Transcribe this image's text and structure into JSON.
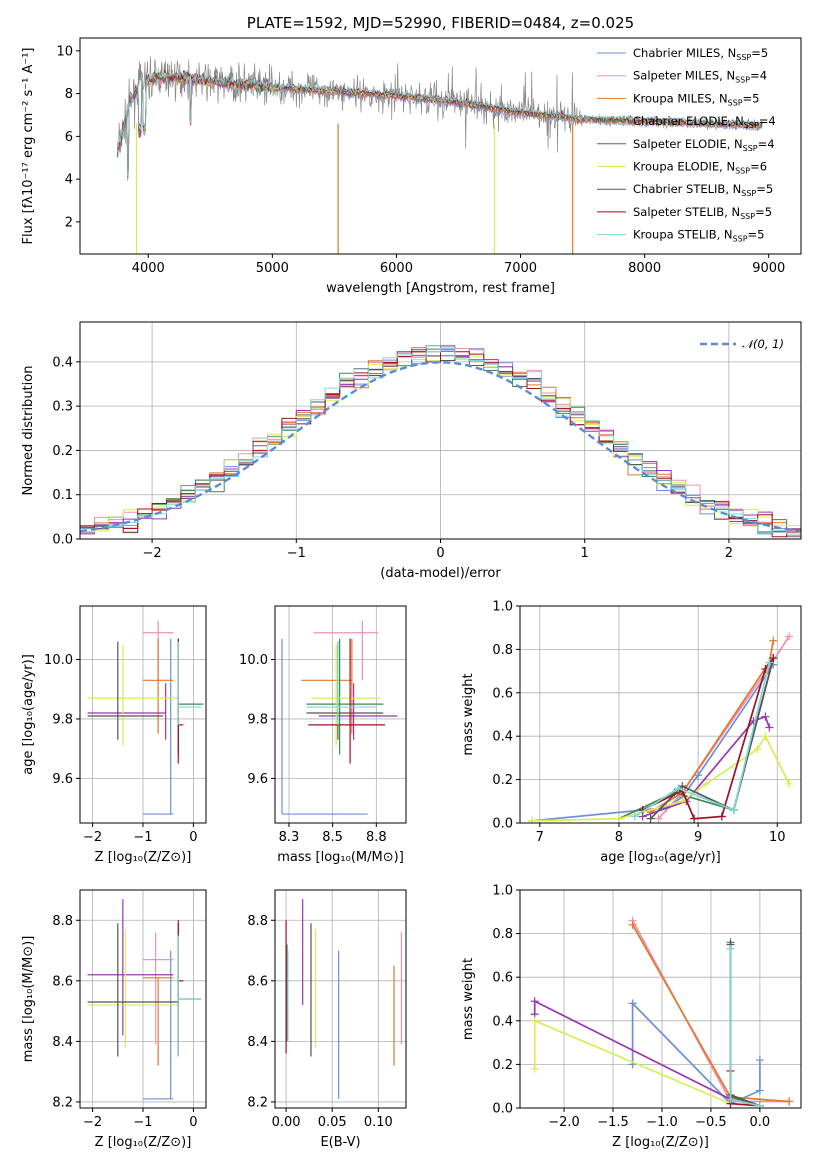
{
  "colors": [
    "#6d8fd8",
    "#f08fb8",
    "#e07a2c",
    "#3a8a4e",
    "#9b35b0",
    "#d9eb55",
    "#555555",
    "#a01020",
    "#7fd6d6"
  ],
  "chart_data": [
    {
      "id": "spectrum",
      "type": "line",
      "title": "PLATE=1592, MJD=52990, FIBERID=0484, z=0.025",
      "xlabel": "wavelength [Angstrom, rest frame]",
      "ylabel": "Flux [fλ10⁻¹⁷ erg cm⁻² s⁻¹ A⁻¹]",
      "xlim": [
        3450,
        9260
      ],
      "ylim": [
        0.5,
        10.6
      ],
      "xticks": [
        4000,
        5000,
        6000,
        7000,
        8000,
        9000
      ],
      "yticks": [
        2,
        4,
        6,
        8,
        10
      ],
      "continuum": [
        [
          3750,
          5.2
        ],
        [
          3850,
          7.6
        ],
        [
          3950,
          8.6
        ],
        [
          4100,
          8.8
        ],
        [
          4300,
          8.7
        ],
        [
          4600,
          8.5
        ],
        [
          5000,
          8.3
        ],
        [
          5500,
          8.1
        ],
        [
          6000,
          7.9
        ],
        [
          6500,
          7.6
        ],
        [
          7000,
          7.1
        ],
        [
          7500,
          6.8
        ],
        [
          8000,
          6.7
        ],
        [
          8500,
          6.6
        ],
        [
          9000,
          6.5
        ]
      ],
      "legend": [
        "Chabrier MILES, N_SSP=5",
        "Salpeter MILES, N_SSP=4",
        "Kroupa MILES, N_SSP=5",
        "Chabrier ELODIE, N_SSP=4",
        "Salpeter ELODIE, N_SSP=4",
        "Kroupa ELODIE, N_SSP=6",
        "Chabrier STELIB, N_SSP=5",
        "Salpeter STELIB, N_SSP=5",
        "Kroupa STELIB, N_SSP=5"
      ],
      "legend_labels": [
        {
          "name": "Chabrier MILES, N",
          "sub": "SSP",
          "tail": "=5"
        },
        {
          "name": "Salpeter MILES, N",
          "sub": "SSP",
          "tail": "=4"
        },
        {
          "name": "Kroupa MILES, N",
          "sub": "SSP",
          "tail": "=5"
        },
        {
          "name": "Chabrier ELODIE, N",
          "sub": "SSP",
          "tail": "=4"
        },
        {
          "name": "Salpeter ELODIE, N",
          "sub": "SSP",
          "tail": "=4"
        },
        {
          "name": "Kroupa ELODIE, N",
          "sub": "SSP",
          "tail": "=6"
        },
        {
          "name": "Chabrier STELIB, N",
          "sub": "SSP",
          "tail": "=5"
        },
        {
          "name": "Salpeter STELIB, N",
          "sub": "SSP",
          "tail": "=5"
        },
        {
          "name": "Kroupa STELIB, N",
          "sub": "SSP",
          "tail": "=5"
        }
      ],
      "legend_position": "top-right"
    },
    {
      "id": "residuals",
      "type": "histogram",
      "xlabel": "(data-model)/error",
      "ylabel": "Normed distribution",
      "xlim": [
        -2.5,
        2.5
      ],
      "ylim": [
        0,
        0.49
      ],
      "xticks": [
        -2,
        -1,
        0,
        1,
        2
      ],
      "yticks": [
        0.0,
        0.1,
        0.2,
        0.3,
        0.4
      ],
      "grid": true,
      "reference": {
        "label": "𝒩(0, 1)",
        "mean": 0,
        "sigma": 1
      },
      "legend_position": "top-right"
    },
    {
      "id": "age_vs_Z",
      "type": "scatter",
      "xlabel": "Z [log₁₀(Z/Z⊙)]",
      "ylabel": "age  [log₁₀(age/yr)]",
      "xlim": [
        -2.25,
        0.25
      ],
      "ylim": [
        9.45,
        10.18
      ],
      "xticks": [
        -2,
        -1,
        0
      ],
      "yticks": [
        9.6,
        9.8,
        10.0
      ],
      "grid": true,
      "points": [
        {
          "x": -0.45,
          "y": 9.48,
          "xlo": -1.0,
          "xhi": -0.4,
          "ylo": 9.48,
          "yhi": 10.07
        },
        {
          "x": -0.7,
          "y": 10.09,
          "xlo": -1.0,
          "xhi": -0.4,
          "ylo": 9.93,
          "yhi": 10.13
        },
        {
          "x": -0.7,
          "y": 9.93,
          "xlo": -1.0,
          "xhi": -0.4,
          "ylo": 9.75,
          "yhi": 10.07
        },
        {
          "x": -0.3,
          "y": 9.85,
          "xlo": -0.3,
          "xhi": 0.2,
          "ylo": 9.68,
          "yhi": 10.07
        },
        {
          "x": -0.55,
          "y": 9.82,
          "xlo": -2.1,
          "xhi": -0.55,
          "ylo": 9.73,
          "yhi": 9.92
        },
        {
          "x": -1.4,
          "y": 9.87,
          "xlo": -2.1,
          "xhi": -0.3,
          "ylo": 9.71,
          "yhi": 10.05
        },
        {
          "x": -1.5,
          "y": 9.81,
          "xlo": -2.1,
          "xhi": -0.6,
          "ylo": 9.73,
          "yhi": 10.06
        },
        {
          "x": -0.3,
          "y": 9.78,
          "xlo": -0.3,
          "xhi": -0.2,
          "ylo": 9.65,
          "yhi": 10.07
        },
        {
          "x": -0.3,
          "y": 9.84,
          "xlo": -0.3,
          "xhi": 0.15,
          "ylo": 9.78,
          "yhi": 10.06
        }
      ]
    },
    {
      "id": "age_vs_mass",
      "type": "scatter",
      "xlabel": "mass [log₁₀(M/M⊙)]",
      "ylabel": "",
      "xlim": [
        8.17,
        8.92
      ],
      "ylim": [
        9.45,
        10.18
      ],
      "xticks": [
        8.25,
        8.5,
        8.75
      ],
      "yticks": [
        9.6,
        9.8,
        10.0
      ],
      "grid": true,
      "points": [
        {
          "x": 8.21,
          "y": 9.48,
          "xlo": 8.21,
          "xhi": 8.7,
          "ylo": 9.48,
          "yhi": 10.07
        },
        {
          "x": 8.67,
          "y": 10.09,
          "xlo": 8.39,
          "xhi": 8.76,
          "ylo": 9.93,
          "yhi": 10.13
        },
        {
          "x": 8.61,
          "y": 9.93,
          "xlo": 8.32,
          "xhi": 8.61,
          "ylo": 9.75,
          "yhi": 10.07
        },
        {
          "x": 8.54,
          "y": 9.85,
          "xlo": 8.35,
          "xhi": 8.79,
          "ylo": 9.68,
          "yhi": 10.07
        },
        {
          "x": 8.62,
          "y": 9.81,
          "xlo": 8.42,
          "xhi": 8.87,
          "ylo": 9.73,
          "yhi": 9.92
        },
        {
          "x": 8.52,
          "y": 9.87,
          "xlo": 8.38,
          "xhi": 8.77,
          "ylo": 9.71,
          "yhi": 10.05
        },
        {
          "x": 8.53,
          "y": 9.82,
          "xlo": 8.35,
          "xhi": 8.79,
          "ylo": 9.73,
          "yhi": 10.06
        },
        {
          "x": 8.6,
          "y": 9.78,
          "xlo": 8.36,
          "xhi": 8.8,
          "ylo": 9.65,
          "yhi": 10.07
        },
        {
          "x": 8.53,
          "y": 9.84,
          "xlo": 8.35,
          "xhi": 8.75,
          "ylo": 9.78,
          "yhi": 10.06
        }
      ]
    },
    {
      "id": "weight_vs_age",
      "type": "line",
      "xlabel": "age  [log₁₀(age/yr)]",
      "ylabel": "mass weight",
      "xlim": [
        6.75,
        10.3
      ],
      "ylim": [
        0,
        1
      ],
      "xticks": [
        7,
        8,
        9,
        10
      ],
      "yticks": [
        0.0,
        0.2,
        0.4,
        0.6,
        0.8,
        1.0
      ],
      "grid": true,
      "series": [
        {
          "x": [
            6.9,
            8.6,
            8.8,
            9.0,
            9.95
          ],
          "y": [
            0.01,
            0.07,
            0.12,
            0.22,
            0.73
          ]
        },
        {
          "x": [
            8.5,
            8.8,
            9.9,
            10.15
          ],
          "y": [
            0.02,
            0.14,
            0.72,
            0.86
          ]
        },
        {
          "x": [
            8.4,
            8.8,
            9.9,
            9.95
          ],
          "y": [
            0.05,
            0.14,
            0.74,
            0.84
          ]
        },
        {
          "x": [
            8.0,
            8.7,
            9.45,
            9.95
          ],
          "y": [
            0.02,
            0.14,
            0.06,
            0.76
          ]
        },
        {
          "x": [
            8.3,
            8.85,
            9.7,
            9.85,
            9.9
          ],
          "y": [
            0.03,
            0.1,
            0.47,
            0.49,
            0.44
          ]
        },
        {
          "x": [
            6.9,
            8.0,
            8.8,
            9.1,
            9.75,
            9.85,
            10.15
          ],
          "y": [
            0.01,
            0.02,
            0.1,
            0.18,
            0.34,
            0.4,
            0.18
          ]
        },
        {
          "x": [
            8.4,
            8.8,
            9.45,
            9.95
          ],
          "y": [
            0.02,
            0.17,
            0.06,
            0.76
          ]
        },
        {
          "x": [
            8.3,
            8.8,
            8.95,
            9.3,
            9.85,
            9.95
          ],
          "y": [
            0.06,
            0.15,
            0.02,
            0.03,
            0.71,
            0.76
          ]
        },
        {
          "x": [
            8.2,
            8.75,
            9.45,
            9.9
          ],
          "y": [
            0.03,
            0.16,
            0.06,
            0.74
          ]
        }
      ]
    },
    {
      "id": "mass_vs_Z",
      "type": "scatter",
      "xlabel": "Z [log₁₀(Z/Z⊙)]",
      "ylabel": "mass [log₁₀(M/M⊙)]",
      "xlim": [
        -2.25,
        0.25
      ],
      "ylim": [
        8.18,
        8.9
      ],
      "xticks": [
        -2,
        -1,
        0
      ],
      "yticks": [
        8.2,
        8.4,
        8.6,
        8.8
      ],
      "grid": true,
      "points": [
        {
          "x": -0.45,
          "y": 8.21,
          "xlo": -1.0,
          "xhi": -0.4,
          "ylo": 8.21,
          "yhi": 8.7
        },
        {
          "x": -0.75,
          "y": 8.67,
          "xlo": -1.0,
          "xhi": -0.4,
          "ylo": 8.39,
          "yhi": 8.76
        },
        {
          "x": -0.7,
          "y": 8.61,
          "xlo": -1.0,
          "xhi": -0.4,
          "ylo": 8.32,
          "yhi": 8.61
        },
        {
          "x": -0.3,
          "y": 8.54,
          "xlo": -0.3,
          "xhi": 0.15,
          "ylo": 8.35,
          "yhi": 8.79
        },
        {
          "x": -1.4,
          "y": 8.62,
          "xlo": -2.1,
          "xhi": -0.4,
          "ylo": 8.42,
          "yhi": 8.87
        },
        {
          "x": -1.35,
          "y": 8.52,
          "xlo": -2.1,
          "xhi": -0.3,
          "ylo": 8.38,
          "yhi": 8.77
        },
        {
          "x": -1.5,
          "y": 8.53,
          "xlo": -2.1,
          "xhi": -0.3,
          "ylo": 8.35,
          "yhi": 8.79
        },
        {
          "x": -0.3,
          "y": 8.6,
          "xlo": -0.3,
          "xhi": -0.2,
          "ylo": 8.36,
          "yhi": 8.8
        },
        {
          "x": -0.3,
          "y": 8.54,
          "xlo": -0.3,
          "xhi": 0.15,
          "ylo": 8.35,
          "yhi": 8.75
        }
      ]
    },
    {
      "id": "mass_vs_ebv",
      "type": "scatter",
      "xlabel": "E(B-V)",
      "ylabel": "",
      "xlim": [
        -0.012,
        0.13
      ],
      "ylim": [
        8.18,
        8.9
      ],
      "xticks": [
        0.0,
        0.05,
        0.1
      ],
      "yticks": [
        8.2,
        8.4,
        8.6,
        8.8
      ],
      "grid": true,
      "points": [
        {
          "x": 0.057,
          "ylo": 8.21,
          "yhi": 8.7
        },
        {
          "x": 0.125,
          "ylo": 8.39,
          "yhi": 8.76
        },
        {
          "x": 0.117,
          "ylo": 8.32,
          "yhi": 8.65
        },
        {
          "x": 0.001,
          "ylo": 8.4,
          "yhi": 8.72
        },
        {
          "x": 0.018,
          "ylo": 8.52,
          "yhi": 8.87
        },
        {
          "x": 0.032,
          "ylo": 8.38,
          "yhi": 8.77
        },
        {
          "x": 0.027,
          "ylo": 8.35,
          "yhi": 8.79
        },
        {
          "x": 0.0,
          "ylo": 8.36,
          "yhi": 8.8
        },
        {
          "x": 0.002,
          "ylo": 8.4,
          "yhi": 8.7
        }
      ]
    },
    {
      "id": "weight_vs_Z",
      "type": "line",
      "xlabel": "Z [log₁₀(Z/Z⊙)]",
      "ylabel": "mass weight",
      "xlim": [
        -2.45,
        0.42
      ],
      "ylim": [
        0,
        1
      ],
      "xticks": [
        -2.0,
        -1.5,
        -1.0,
        -0.5,
        0.0
      ],
      "yticks": [
        0.0,
        0.2,
        0.4,
        0.6,
        0.8,
        1.0
      ],
      "grid": true,
      "series": [
        {
          "x": [
            -1.3,
            -1.3,
            -0.3,
            0.0,
            0.0
          ],
          "y": [
            0.2,
            0.48,
            0.02,
            0.08,
            0.22
          ]
        },
        {
          "x": [
            -1.3,
            -0.3,
            0.3
          ],
          "y": [
            0.86,
            0.03,
            0.03
          ]
        },
        {
          "x": [
            -1.3,
            -0.3,
            0.3
          ],
          "y": [
            0.84,
            0.05,
            0.03
          ]
        },
        {
          "x": [
            -0.3,
            -0.3,
            0.0
          ],
          "y": [
            0.76,
            0.05,
            0.01
          ]
        },
        {
          "x": [
            -2.3,
            -2.3,
            -0.3,
            0.0
          ],
          "y": [
            0.43,
            0.49,
            0.04,
            0.01
          ]
        },
        {
          "x": [
            -2.3,
            -2.3,
            -0.3,
            0.0
          ],
          "y": [
            0.18,
            0.4,
            0.02,
            0.01
          ]
        },
        {
          "x": [
            -0.3,
            -0.3,
            0.0
          ],
          "y": [
            0.75,
            0.06,
            0.01
          ]
        },
        {
          "x": [
            -0.3,
            -0.3,
            0.0
          ],
          "y": [
            0.17,
            0.02,
            0.01
          ]
        },
        {
          "x": [
            -0.3,
            -0.3,
            0.0
          ],
          "y": [
            0.73,
            0.04,
            0.01
          ]
        }
      ]
    }
  ]
}
